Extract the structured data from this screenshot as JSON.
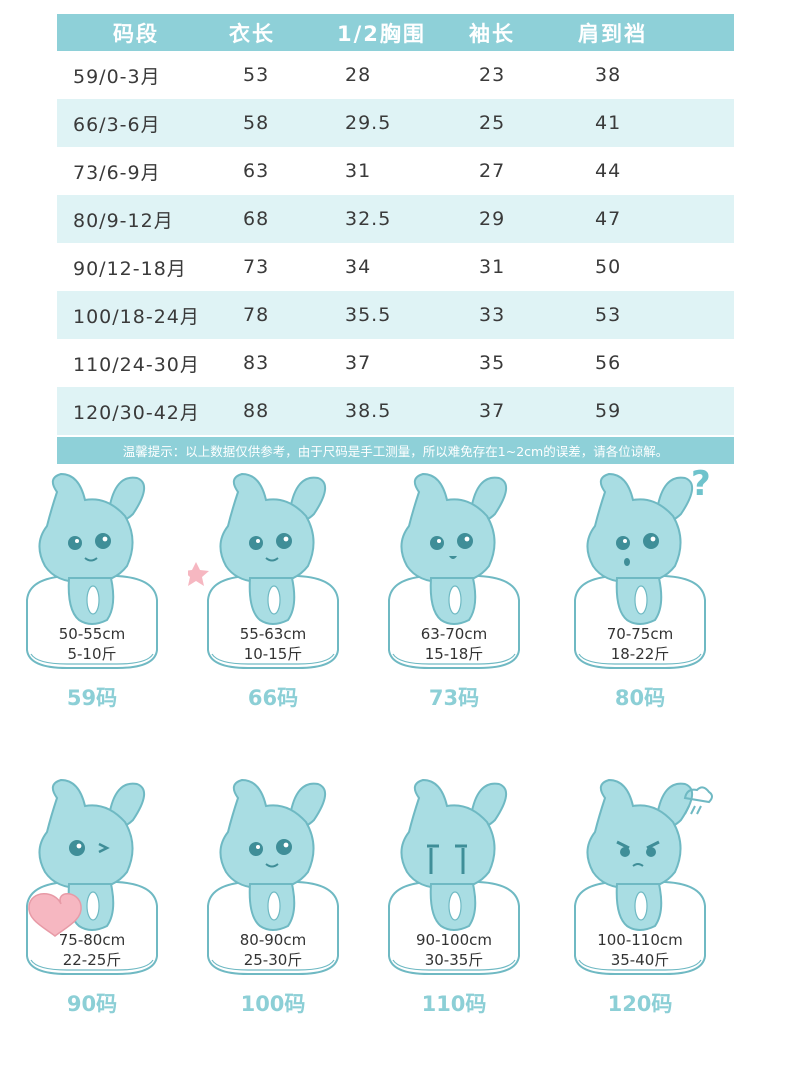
{
  "table": {
    "headers": [
      "码段",
      "衣长",
      "1/2胸围",
      "袖长",
      "肩到裆"
    ],
    "rows": [
      {
        "size": "59",
        "age": "0-3月",
        "length": "53",
        "chest": "28",
        "sleeve": "23",
        "shoulder_crotch": "38"
      },
      {
        "size": "66",
        "age": "3-6月",
        "length": "58",
        "chest": "29.5",
        "sleeve": "25",
        "shoulder_crotch": "41"
      },
      {
        "size": "73",
        "age": "6-9月",
        "length": "63",
        "chest": "31",
        "sleeve": "27",
        "shoulder_crotch": "44"
      },
      {
        "size": "80",
        "age": "9-12月",
        "length": "68",
        "chest": "32.5",
        "sleeve": "29",
        "shoulder_crotch": "47"
      },
      {
        "size": "90",
        "age": "12-18月",
        "length": "73",
        "chest": "34",
        "sleeve": "31",
        "shoulder_crotch": "50"
      },
      {
        "size": "100",
        "age": "18-24月",
        "length": "78",
        "chest": "35.5",
        "sleeve": "33",
        "shoulder_crotch": "53"
      },
      {
        "size": "110",
        "age": "24-30月",
        "length": "83",
        "chest": "37",
        "sleeve": "35",
        "shoulder_crotch": "56"
      },
      {
        "size": "120",
        "age": "30-42月",
        "length": "88",
        "chest": "38.5",
        "sleeve": "37",
        "shoulder_crotch": "59"
      }
    ],
    "slash": "/",
    "notice": "温馨提示：以上数据仅供参考，由于尺码是手工测量，所以难免存在1~2cm的误差，请各位谅解。"
  },
  "cards": [
    {
      "height": "50-55cm",
      "weight": "5-10斤",
      "code": "59码",
      "pose": "smile"
    },
    {
      "height": "55-63cm",
      "weight": "10-15斤",
      "code": "66码",
      "pose": "star"
    },
    {
      "height": "63-70cm",
      "weight": "15-18斤",
      "code": "73码",
      "pose": "sit"
    },
    {
      "height": "70-75cm",
      "weight": "18-22斤",
      "code": "80码",
      "pose": "question"
    },
    {
      "height": "75-80cm",
      "weight": "22-25斤",
      "code": "90码",
      "pose": "heart"
    },
    {
      "height": "80-90cm",
      "weight": "25-30斤",
      "code": "100码",
      "pose": "lean"
    },
    {
      "height": "90-100cm",
      "weight": "30-35斤",
      "code": "110码",
      "pose": "cry"
    },
    {
      "height": "100-110cm",
      "weight": "35-40斤",
      "code": "120码",
      "pose": "angry"
    }
  ],
  "marks": {
    "question": "?"
  },
  "colors": {
    "accent": "#8ed0d8",
    "row_alt": "#dff3f5",
    "code_text": "#8ccfd6",
    "bunny": "#a9dde3",
    "outline": "#6fb9c3",
    "heart": "#f6b7c1"
  }
}
